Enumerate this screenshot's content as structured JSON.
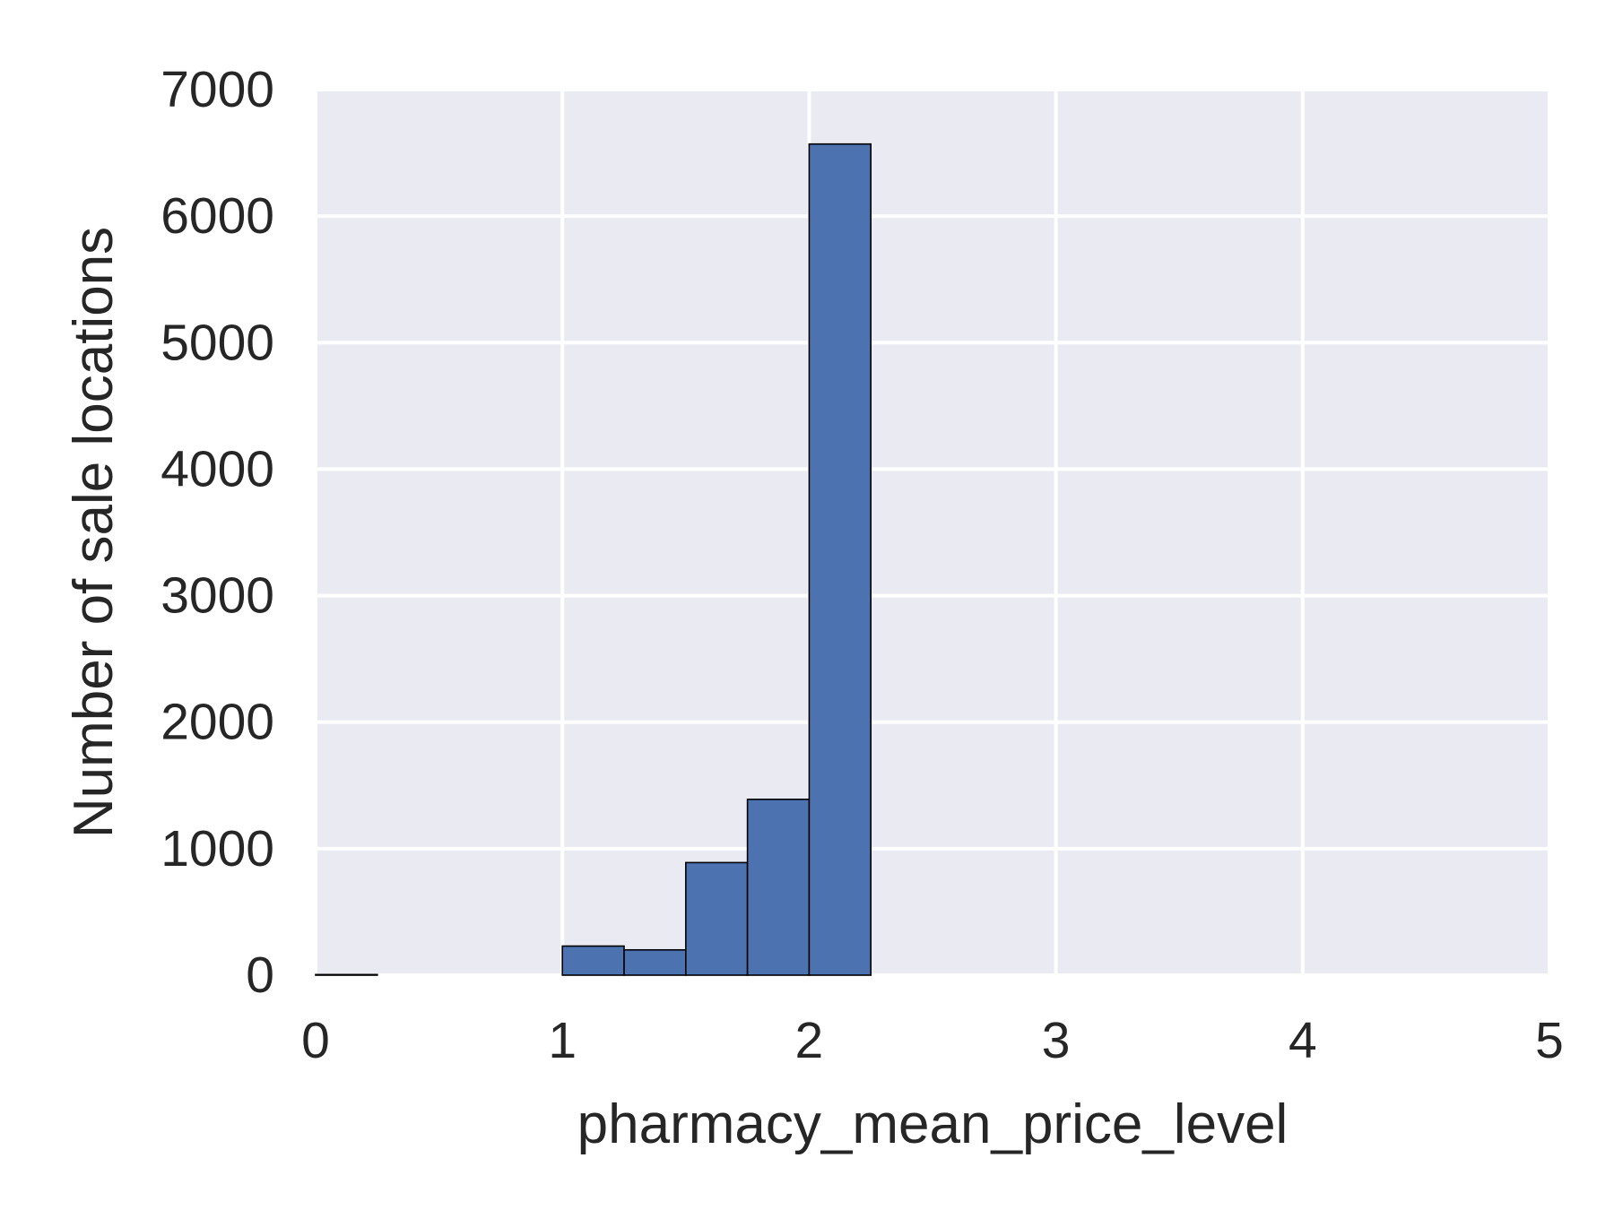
{
  "chart_data": {
    "type": "bar",
    "subtype": "histogram",
    "title": "",
    "xlabel": "pharmacy_mean_price_level",
    "ylabel": "Number of sale locations",
    "xlim": [
      0,
      5
    ],
    "ylim": [
      0,
      7000
    ],
    "xticks": [
      0,
      1,
      2,
      3,
      4,
      5
    ],
    "yticks": [
      0,
      1000,
      2000,
      3000,
      4000,
      5000,
      6000,
      7000
    ],
    "bins": [
      {
        "x0": 0.0,
        "x1": 0.25,
        "count": 5
      },
      {
        "x0": 0.25,
        "x1": 0.5,
        "count": 0
      },
      {
        "x0": 0.5,
        "x1": 0.75,
        "count": 0
      },
      {
        "x0": 0.75,
        "x1": 1.0,
        "count": 0
      },
      {
        "x0": 1.0,
        "x1": 1.25,
        "count": 230
      },
      {
        "x0": 1.25,
        "x1": 1.5,
        "count": 200
      },
      {
        "x0": 1.5,
        "x1": 1.75,
        "count": 890
      },
      {
        "x0": 1.75,
        "x1": 2.0,
        "count": 1390
      },
      {
        "x0": 2.0,
        "x1": 2.25,
        "count": 6570
      },
      {
        "x0": 2.25,
        "x1": 2.5,
        "count": 0
      },
      {
        "x0": 2.5,
        "x1": 2.75,
        "count": 0
      },
      {
        "x0": 2.75,
        "x1": 3.0,
        "count": 0
      },
      {
        "x0": 3.0,
        "x1": 3.25,
        "count": 0
      },
      {
        "x0": 3.25,
        "x1": 3.5,
        "count": 0
      },
      {
        "x0": 3.5,
        "x1": 3.75,
        "count": 0
      },
      {
        "x0": 3.75,
        "x1": 4.0,
        "count": 0
      },
      {
        "x0": 4.0,
        "x1": 4.25,
        "count": 0
      },
      {
        "x0": 4.25,
        "x1": 4.5,
        "count": 0
      },
      {
        "x0": 4.5,
        "x1": 4.75,
        "count": 0
      },
      {
        "x0": 4.75,
        "x1": 5.0,
        "count": 0
      }
    ],
    "grid": true,
    "legend": "none",
    "colors": {
      "bar_fill": "#4c72b0",
      "bar_edge": "#000000",
      "plot_background": "#eaeaf2",
      "grid": "#ffffff",
      "text": "#262626"
    }
  }
}
